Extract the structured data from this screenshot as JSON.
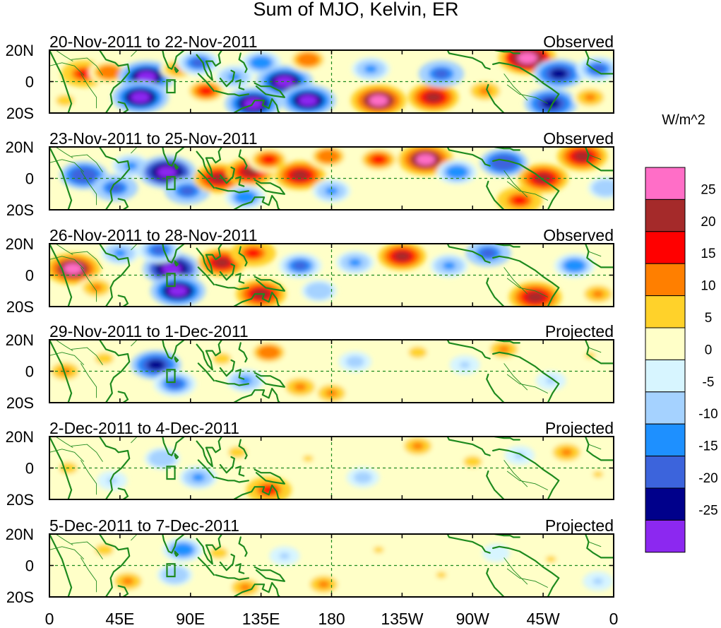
{
  "chart_data": {
    "type": "heatmap",
    "title": "Sum of MJO, Kelvin, ER",
    "units": "W/m^2",
    "colors": {
      "land": "#1e8a1e",
      "equator_line": "#1e8a1e",
      "dateline": "#1e8a1e",
      "frame": "#000000"
    },
    "lon_ticks": [
      {
        "label": "0",
        "lon": 0
      },
      {
        "label": "45E",
        "lon": 45
      },
      {
        "label": "90E",
        "lon": 90
      },
      {
        "label": "135E",
        "lon": 135
      },
      {
        "label": "180",
        "lon": 180
      },
      {
        "label": "135W",
        "lon": 225
      },
      {
        "label": "90W",
        "lon": 270
      },
      {
        "label": "45W",
        "lon": 315
      },
      {
        "label": "0",
        "lon": 360
      }
    ],
    "lat_ticks": [
      {
        "label": "20N",
        "lat": 20
      },
      {
        "label": "0",
        "lat": 0
      },
      {
        "label": "20S",
        "lat": -20
      }
    ],
    "lon_range": [
      0,
      360
    ],
    "lat_range": [
      -20,
      20
    ],
    "colorbar": {
      "labels": [
        "25",
        "20",
        "15",
        "10",
        "5",
        "0",
        "-5",
        "-10",
        "-15",
        "-20",
        "-25"
      ],
      "colors": [
        "#ff6ec7",
        "#a52a2a",
        "#ff0000",
        "#ff7f00",
        "#ffd22a",
        "#ffffc8",
        "#d7f5ff",
        "#a5d2ff",
        "#1e90ff",
        "#3c64dc",
        "#00008b",
        "#8c28f0"
      ]
    },
    "panels": [
      {
        "date_range": "20-Nov-2011 to 22-Nov-2011",
        "status": "Observed",
        "anomalies": [
          {
            "lon": 22,
            "lat": 5,
            "value": 18
          },
          {
            "lon": 38,
            "lat": 6,
            "value": 14
          },
          {
            "lon": 62,
            "lat": 3,
            "value": -27
          },
          {
            "lon": 58,
            "lat": -10,
            "value": -27
          },
          {
            "lon": 82,
            "lat": 8,
            "value": 10
          },
          {
            "lon": 95,
            "lat": 12,
            "value": -16
          },
          {
            "lon": 100,
            "lat": -6,
            "value": 16
          },
          {
            "lon": 118,
            "lat": 3,
            "value": -12
          },
          {
            "lon": 135,
            "lat": 12,
            "value": -14
          },
          {
            "lon": 150,
            "lat": 0,
            "value": -27
          },
          {
            "lon": 165,
            "lat": -12,
            "value": -26
          },
          {
            "lon": 130,
            "lat": -14,
            "value": -27
          },
          {
            "lon": 165,
            "lat": 14,
            "value": 14
          },
          {
            "lon": 205,
            "lat": 8,
            "value": -12
          },
          {
            "lon": 210,
            "lat": -12,
            "value": 26
          },
          {
            "lon": 245,
            "lat": -10,
            "value": 22
          },
          {
            "lon": 250,
            "lat": 5,
            "value": -18
          },
          {
            "lon": 278,
            "lat": -6,
            "value": 12
          },
          {
            "lon": 305,
            "lat": 15,
            "value": 28
          },
          {
            "lon": 325,
            "lat": 5,
            "value": -22
          },
          {
            "lon": 350,
            "lat": 8,
            "value": -16
          },
          {
            "lon": 320,
            "lat": -14,
            "value": -24
          },
          {
            "lon": 345,
            "lat": -10,
            "value": 10
          },
          {
            "lon": 10,
            "lat": -12,
            "value": 8
          }
        ]
      },
      {
        "date_range": "23-Nov-2011 to 25-Nov-2011",
        "status": "Observed",
        "anomalies": [
          {
            "lon": 22,
            "lat": 2,
            "value": -20
          },
          {
            "lon": 42,
            "lat": -6,
            "value": -18
          },
          {
            "lon": 52,
            "lat": 8,
            "value": -12
          },
          {
            "lon": 75,
            "lat": 4,
            "value": -28
          },
          {
            "lon": 88,
            "lat": -8,
            "value": -18
          },
          {
            "lon": 108,
            "lat": 0,
            "value": 22
          },
          {
            "lon": 128,
            "lat": 4,
            "value": 20
          },
          {
            "lon": 140,
            "lat": 12,
            "value": 16
          },
          {
            "lon": 125,
            "lat": -12,
            "value": -14
          },
          {
            "lon": 160,
            "lat": 2,
            "value": 22
          },
          {
            "lon": 178,
            "lat": 14,
            "value": 14
          },
          {
            "lon": 180,
            "lat": -8,
            "value": -12
          },
          {
            "lon": 210,
            "lat": 12,
            "value": 16
          },
          {
            "lon": 240,
            "lat": 12,
            "value": 26
          },
          {
            "lon": 260,
            "lat": 4,
            "value": -14
          },
          {
            "lon": 290,
            "lat": 10,
            "value": -20
          },
          {
            "lon": 315,
            "lat": 0,
            "value": 22
          },
          {
            "lon": 340,
            "lat": 14,
            "value": 22
          },
          {
            "lon": 355,
            "lat": -6,
            "value": -10
          },
          {
            "lon": 300,
            "lat": -14,
            "value": 18
          }
        ]
      },
      {
        "date_range": "26-Nov-2011 to 28-Nov-2011",
        "status": "Observed",
        "anomalies": [
          {
            "lon": 15,
            "lat": 4,
            "value": 26
          },
          {
            "lon": 30,
            "lat": -8,
            "value": 10
          },
          {
            "lon": 45,
            "lat": 14,
            "value": -12
          },
          {
            "lon": 78,
            "lat": 4,
            "value": -28
          },
          {
            "lon": 82,
            "lat": -10,
            "value": -26
          },
          {
            "lon": 70,
            "lat": 16,
            "value": -16
          },
          {
            "lon": 110,
            "lat": 8,
            "value": 20
          },
          {
            "lon": 130,
            "lat": 14,
            "value": 18
          },
          {
            "lon": 135,
            "lat": -12,
            "value": 22
          },
          {
            "lon": 160,
            "lat": 6,
            "value": -16
          },
          {
            "lon": 172,
            "lat": -10,
            "value": -10
          },
          {
            "lon": 195,
            "lat": 8,
            "value": -12
          },
          {
            "lon": 225,
            "lat": 12,
            "value": 20
          },
          {
            "lon": 255,
            "lat": 6,
            "value": -12
          },
          {
            "lon": 280,
            "lat": 14,
            "value": -18
          },
          {
            "lon": 310,
            "lat": -14,
            "value": 24
          },
          {
            "lon": 335,
            "lat": 6,
            "value": -14
          },
          {
            "lon": 350,
            "lat": -12,
            "value": 10
          }
        ]
      },
      {
        "date_range": "29-Nov-2011 to 1-Dec-2011",
        "status": "Projected",
        "anomalies": [
          {
            "lon": 10,
            "lat": 0,
            "value": 10
          },
          {
            "lon": 35,
            "lat": 8,
            "value": 8
          },
          {
            "lon": 68,
            "lat": 4,
            "value": -22
          },
          {
            "lon": 80,
            "lat": -8,
            "value": -16
          },
          {
            "lon": 110,
            "lat": 8,
            "value": 8
          },
          {
            "lon": 140,
            "lat": 12,
            "value": 14
          },
          {
            "lon": 125,
            "lat": -6,
            "value": -12
          },
          {
            "lon": 160,
            "lat": -10,
            "value": 12
          },
          {
            "lon": 180,
            "lat": -14,
            "value": 10
          },
          {
            "lon": 195,
            "lat": 6,
            "value": -8
          },
          {
            "lon": 235,
            "lat": 12,
            "value": 8
          },
          {
            "lon": 265,
            "lat": 4,
            "value": -6
          },
          {
            "lon": 290,
            "lat": 14,
            "value": 10
          },
          {
            "lon": 320,
            "lat": -6,
            "value": -6
          },
          {
            "lon": 345,
            "lat": 10,
            "value": 6
          }
        ]
      },
      {
        "date_range": "2-Dec-2011 to 4-Dec-2011",
        "status": "Projected",
        "anomalies": [
          {
            "lon": 12,
            "lat": 0,
            "value": 8
          },
          {
            "lon": 40,
            "lat": -8,
            "value": -6
          },
          {
            "lon": 72,
            "lat": 6,
            "value": -10
          },
          {
            "lon": 95,
            "lat": -6,
            "value": -12
          },
          {
            "lon": 120,
            "lat": 10,
            "value": 8
          },
          {
            "lon": 140,
            "lat": -14,
            "value": 18
          },
          {
            "lon": 165,
            "lat": 6,
            "value": 6
          },
          {
            "lon": 200,
            "lat": -6,
            "value": -8
          },
          {
            "lon": 235,
            "lat": 14,
            "value": 10
          },
          {
            "lon": 270,
            "lat": 4,
            "value": 8
          },
          {
            "lon": 300,
            "lat": 8,
            "value": -6
          },
          {
            "lon": 330,
            "lat": 10,
            "value": 10
          },
          {
            "lon": 350,
            "lat": -4,
            "value": 6
          }
        ]
      },
      {
        "date_range": "5-Dec-2011 to 7-Dec-2011",
        "status": "Projected",
        "anomalies": [
          {
            "lon": 35,
            "lat": 10,
            "value": 8
          },
          {
            "lon": 50,
            "lat": -10,
            "value": 10
          },
          {
            "lon": 85,
            "lat": 10,
            "value": -14
          },
          {
            "lon": 80,
            "lat": -6,
            "value": -10
          },
          {
            "lon": 108,
            "lat": 8,
            "value": 8
          },
          {
            "lon": 125,
            "lat": -14,
            "value": 10
          },
          {
            "lon": 150,
            "lat": 6,
            "value": -6
          },
          {
            "lon": 175,
            "lat": -12,
            "value": 10
          },
          {
            "lon": 210,
            "lat": 10,
            "value": 6
          },
          {
            "lon": 250,
            "lat": -6,
            "value": 6
          },
          {
            "lon": 285,
            "lat": 8,
            "value": -4
          },
          {
            "lon": 320,
            "lat": 4,
            "value": 6
          },
          {
            "lon": 350,
            "lat": -10,
            "value": -6
          }
        ]
      }
    ]
  }
}
